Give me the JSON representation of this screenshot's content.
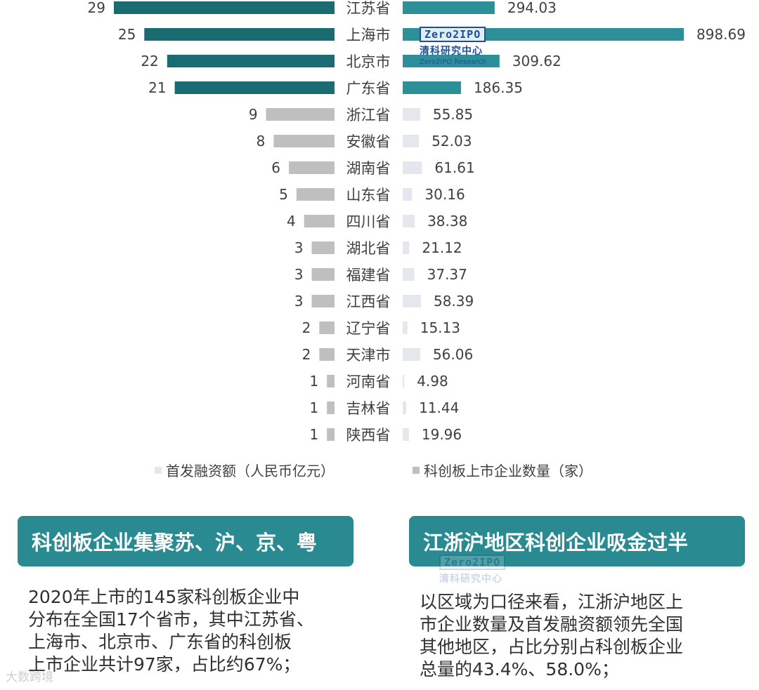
{
  "chart_data": {
    "type": "bar",
    "layout": "butterfly",
    "categories": [
      "江苏省",
      "上海市",
      "北京市",
      "广东省",
      "浙江省",
      "安徽省",
      "湖南省",
      "山东省",
      "四川省",
      "湖北省",
      "福建省",
      "江西省",
      "辽宁省",
      "天津市",
      "河南省",
      "吉林省",
      "陕西省"
    ],
    "series": [
      {
        "name": "科创板上市企业数量（家）",
        "side": "left",
        "values": [
          29,
          25,
          22,
          21,
          9,
          8,
          6,
          5,
          4,
          3,
          3,
          3,
          2,
          2,
          1,
          1,
          1
        ],
        "color_top4": "#1b6b72",
        "color_rest": "#bfbfbf"
      },
      {
        "name": "首发融资额（人民币亿元）",
        "side": "right",
        "values": [
          294.03,
          898.69,
          309.62,
          186.35,
          55.85,
          52.03,
          61.61,
          30.16,
          38.38,
          21.12,
          37.37,
          58.39,
          15.13,
          56.06,
          4.98,
          11.44,
          19.96
        ],
        "labels": [
          "294.03",
          "898.69",
          "309.62",
          "186.35",
          "55.85",
          "52.03",
          "61.61",
          "30.16",
          "38.38",
          "21.12",
          "37.37",
          "58.39",
          "15.13",
          "56.06",
          "4.98",
          "11.44",
          "19.96"
        ],
        "color_top4": "#2d8f98",
        "color_rest": "#e4e8ee"
      }
    ],
    "legend": [
      {
        "label": "首发融资额（人民币亿元）",
        "color": "#e4e8ee"
      },
      {
        "label": "科创板上市企业数量（家）",
        "color": "#bfbfbf"
      }
    ],
    "legend_placement": "bottom",
    "grid": false
  },
  "logo": {
    "box_text": "Zero2IPO",
    "cn": "清科研究中心",
    "en": "Zero2IPO Research"
  },
  "sections": [
    {
      "heading": "科创板企业集聚苏、沪、京、粤",
      "lines": [
        "2020年上市的145家科创板企业中",
        "分布在全国17个省市，其中江苏省、",
        "上海市、北京市、广东省的科创板",
        "上市企业共计97家，占比约67%；"
      ]
    },
    {
      "heading": "江浙沪地区科创企业吸金过半",
      "lines": [
        "以区域为口径来看，江浙沪地区上",
        "市企业数量及首发融资额领先全国",
        "其他地区，占比分别占科创板企业",
        "总量的43.4%、58.0%；"
      ]
    }
  ],
  "watermark": "大数跨境",
  "colors": {
    "teal_dark": "#1b6b72",
    "teal": "#2d8f98",
    "banner": "#2a8a92",
    "gray": "#bfbfbf",
    "light": "#e4e8ee"
  }
}
